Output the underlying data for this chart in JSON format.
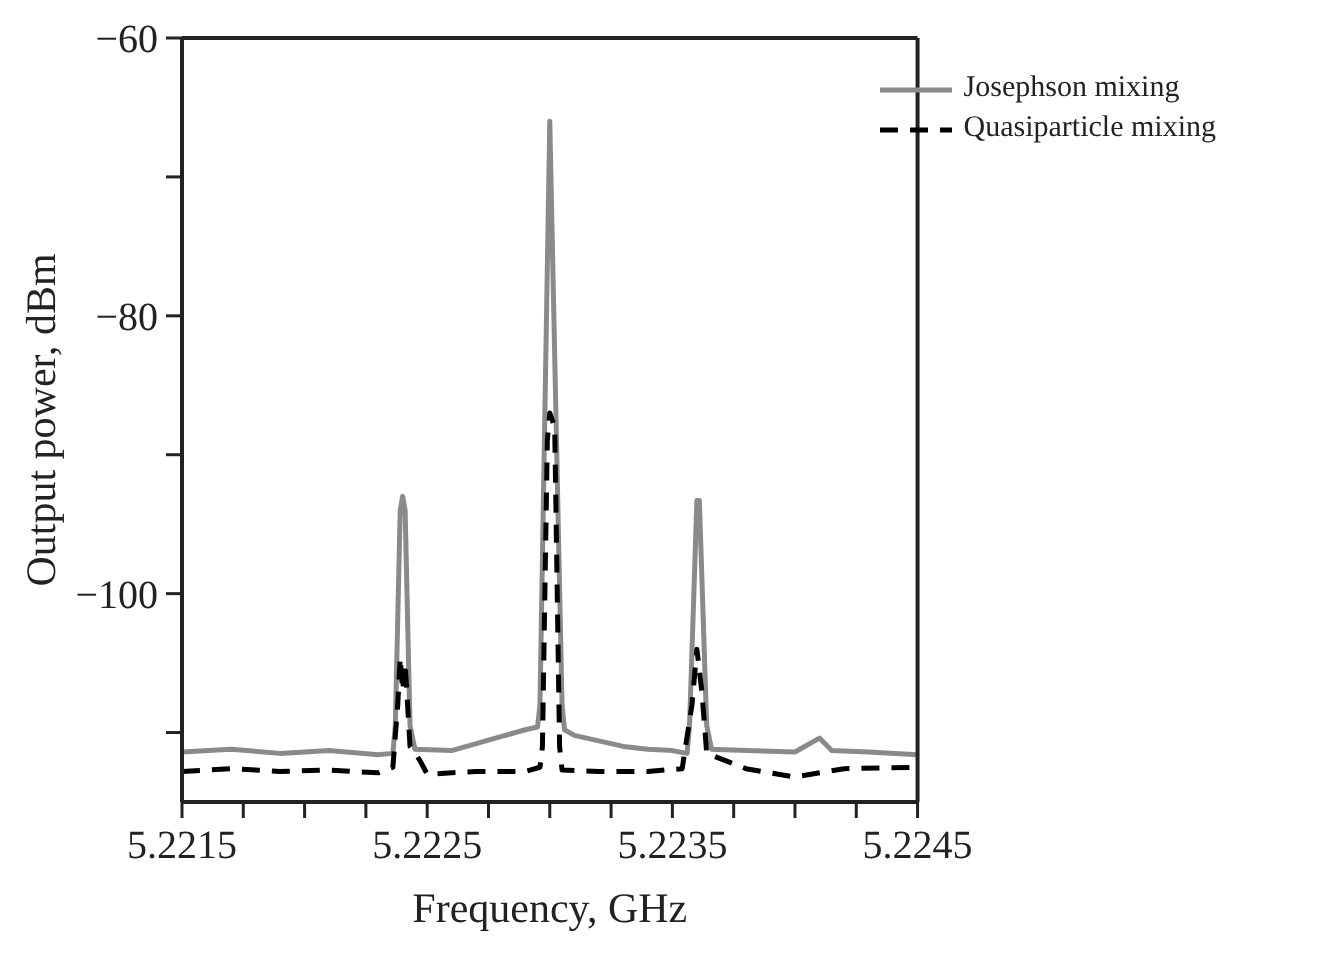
{
  "chart_data": {
    "type": "line",
    "xlabel": "Frequency, GHz",
    "ylabel": "Output power, dBm",
    "xlim": [
      5.2215,
      5.2245
    ],
    "ylim": [
      -115,
      -60
    ],
    "xticks": [
      5.2215,
      {
        "value": 5.22175,
        "label": null
      },
      {
        "value": 5.222,
        "label": null
      },
      {
        "value": 5.22225,
        "label": null
      },
      5.2225,
      {
        "value": 5.22275,
        "label": null
      },
      {
        "value": 5.223,
        "label": null
      },
      {
        "value": 5.22325,
        "label": null
      },
      5.2235,
      {
        "value": 5.22375,
        "label": null
      },
      {
        "value": 5.224,
        "label": null
      },
      {
        "value": 5.22425,
        "label": null
      },
      5.2245
    ],
    "yticks": [
      {
        "value": -60,
        "label": "−60"
      },
      {
        "value": -70,
        "label": null
      },
      {
        "value": -80,
        "label": "−80"
      },
      {
        "value": -90,
        "label": null
      },
      {
        "value": -100,
        "label": "−100"
      },
      {
        "value": -110,
        "label": null
      }
    ],
    "grid": false,
    "legend": "top right",
    "marker": "none",
    "series": [
      {
        "name": "Josephson mixing",
        "color": "#8a8a8a",
        "line_style": "solid",
        "x": [
          5.2215,
          5.2217,
          5.2219,
          5.2221,
          5.2223,
          5.22236,
          5.22237,
          5.22239,
          5.2224,
          5.22241,
          5.22243,
          5.22245,
          5.2226,
          5.2227,
          5.2228,
          5.2229,
          5.22295,
          5.22296,
          5.223,
          5.22305,
          5.22306,
          5.2231,
          5.2232,
          5.2233,
          5.2234,
          5.2235,
          5.22356,
          5.22357,
          5.2236,
          5.22361,
          5.22364,
          5.22366,
          5.2238,
          5.224,
          5.2241,
          5.22415,
          5.2243,
          5.2245
        ],
        "values": [
          -111.4,
          -111.2,
          -111.5,
          -111.3,
          -111.6,
          -111.5,
          -109.5,
          -94,
          -93,
          -94,
          -109.5,
          -111.2,
          -111.3,
          -110.8,
          -110.3,
          -109.8,
          -109.6,
          -108,
          -66,
          -108,
          -109.8,
          -110.2,
          -110.6,
          -111,
          -111.2,
          -111.3,
          -111.5,
          -109.5,
          -93.3,
          -93.3,
          -109.5,
          -111.2,
          -111.3,
          -111.4,
          -110.4,
          -111.3,
          -111.4,
          -111.6
        ]
      },
      {
        "name": "Quasiparticle mixing",
        "color": "#000000",
        "line_style": "dashed",
        "x": [
          5.2215,
          5.2217,
          5.2219,
          5.2221,
          5.2223,
          5.22236,
          5.22238,
          5.22239,
          5.2224,
          5.22241,
          5.22243,
          5.22247,
          5.2225,
          5.2227,
          5.2229,
          5.22296,
          5.22297,
          5.22299,
          5.223,
          5.22302,
          5.22304,
          5.22305,
          5.2232,
          5.2234,
          5.22354,
          5.22358,
          5.2236,
          5.22362,
          5.22364,
          5.2238,
          5.224,
          5.2242,
          5.2245
        ],
        "values": [
          -112.8,
          -112.6,
          -112.8,
          -112.7,
          -112.9,
          -112.5,
          -108,
          -104.6,
          -107,
          -105,
          -111,
          -112,
          -113,
          -112.8,
          -112.8,
          -112.5,
          -111,
          -89,
          -87,
          -88,
          -111,
          -112.7,
          -112.8,
          -112.8,
          -112.6,
          -108,
          -104,
          -107,
          -111.5,
          -112.6,
          -113.2,
          -112.6,
          -112.5
        ]
      }
    ]
  }
}
